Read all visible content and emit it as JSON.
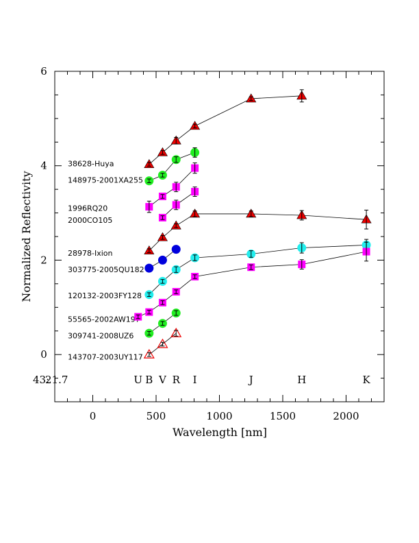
{
  "chart_data": {
    "type": "scatter",
    "xlabel": "Wavelength [nm]",
    "ylabel": "Normalized Reflectivity",
    "xlim": [
      -300,
      2300
    ],
    "ylim": [
      -1,
      6
    ],
    "xticks": [
      0,
      500,
      1000,
      1500,
      2000
    ],
    "yticks": [
      0,
      2,
      4,
      6
    ],
    "x_minor_step": 100,
    "y_minor_step": 0.5,
    "band_caption": {
      "id": "43:",
      "mag": "21.7"
    },
    "bands": [
      {
        "label": "U",
        "x": 358
      },
      {
        "label": "B",
        "x": 445
      },
      {
        "label": "V",
        "x": 551
      },
      {
        "label": "R",
        "x": 658
      },
      {
        "label": "I",
        "x": 806
      },
      {
        "label": "J",
        "x": 1250
      },
      {
        "label": "H",
        "x": 1650
      },
      {
        "label": "K",
        "x": 2160
      }
    ],
    "series": [
      {
        "name": "38628-Huya",
        "marker": "triangle",
        "color": "#ee0000",
        "label_y": 4.05,
        "x": [
          445,
          551,
          658,
          806,
          1250,
          1650
        ],
        "y": [
          4.03,
          4.28,
          4.53,
          4.84,
          5.42,
          5.48
        ],
        "err": [
          0.04,
          0.04,
          0.07,
          0.04,
          0.04,
          0.13
        ]
      },
      {
        "name": "148975-2001XA255",
        "marker": "circle",
        "color": "#22ee22",
        "label_y": 3.7,
        "x": [
          445,
          551,
          658,
          806
        ],
        "y": [
          3.68,
          3.8,
          4.13,
          4.28
        ],
        "err": [
          0.04,
          0.04,
          0.06,
          0.1
        ]
      },
      {
        "name": "1996RQ20",
        "marker": "square",
        "color": "#ff00ff",
        "label_y": 3.1,
        "x": [
          445,
          551,
          658,
          806
        ],
        "y": [
          3.13,
          3.35,
          3.55,
          3.95
        ],
        "err": [
          0.12,
          0.04,
          0.1,
          0.11
        ]
      },
      {
        "name": "2000CO105",
        "marker": "square",
        "color": "#ff00ff",
        "label_y": 2.85,
        "x": [
          551,
          658,
          806
        ],
        "y": [
          2.9,
          3.17,
          3.45
        ],
        "err": [
          0.04,
          0.1,
          0.1
        ]
      },
      {
        "name": "28978-Ixion",
        "marker": "triangle",
        "color": "#ee0000",
        "label_y": 2.15,
        "x": [
          445,
          551,
          658,
          806,
          1250,
          1650,
          2160
        ],
        "y": [
          2.2,
          2.48,
          2.73,
          2.98,
          2.98,
          2.95,
          2.86
        ],
        "err": [
          0.04,
          0.04,
          0.04,
          0.06,
          0.06,
          0.1,
          0.2
        ]
      },
      {
        "name": "303775-2005QU182",
        "marker": "circle",
        "color": "#0000dd",
        "label_y": 1.8,
        "x": [
          445,
          551,
          658
        ],
        "y": [
          1.83,
          2.0,
          2.23
        ],
        "err": [
          0.0,
          0.0,
          0.0
        ]
      },
      {
        "name": "120132-2003FY128",
        "marker": "circle",
        "color": "#22eeee",
        "label_y": 1.25,
        "x": [
          445,
          551,
          658,
          806,
          1250,
          1650,
          2160
        ],
        "y": [
          1.27,
          1.55,
          1.8,
          2.05,
          2.13,
          2.26,
          2.32
        ],
        "err": [
          0.04,
          0.04,
          0.06,
          0.06,
          0.07,
          0.11,
          0.12
        ]
      },
      {
        "name": "55565-2002AW197",
        "marker": "square",
        "color": "#ff00ff",
        "label_y": 0.75,
        "x": [
          358,
          445,
          551,
          658,
          806,
          1250,
          1650,
          2160
        ],
        "y": [
          0.8,
          0.9,
          1.1,
          1.33,
          1.65,
          1.85,
          1.91,
          2.18
        ],
        "err": [
          0.04,
          0.04,
          0.04,
          0.04,
          0.04,
          0.05,
          0.1,
          0.2
        ]
      },
      {
        "name": "309741-2008UZ6",
        "marker": "circle",
        "color": "#22ee22",
        "label_y": 0.4,
        "x": [
          445,
          551,
          658
        ],
        "y": [
          0.45,
          0.66,
          0.88
        ],
        "err": [
          0.04,
          0.04,
          0.05
        ]
      },
      {
        "name": "143707-2003UY117",
        "marker": "triangle-open",
        "color": "#ee0000",
        "label_y": -0.05,
        "x": [
          445,
          551,
          658
        ],
        "y": [
          0.0,
          0.22,
          0.45
        ],
        "err": [
          0.04,
          0.04,
          0.06
        ]
      }
    ]
  }
}
